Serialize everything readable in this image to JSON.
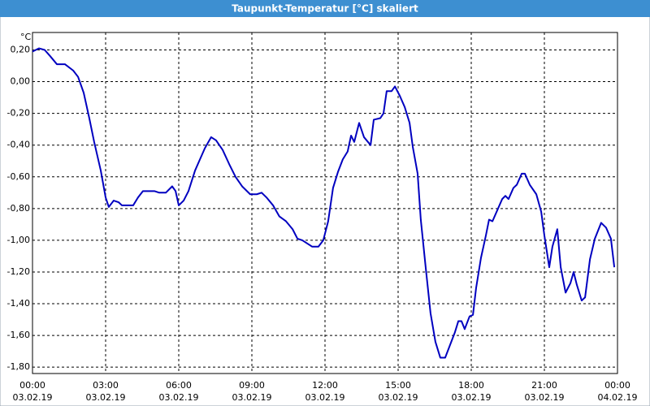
{
  "chart_data": {
    "type": "line",
    "title": "Taupunkt-Temperatur [°C] skaliert",
    "y_unit": "°C",
    "x": [
      0,
      0.27,
      0.5,
      0.73,
      1,
      1.33,
      1.67,
      1.87,
      2.1,
      2.33,
      2.53,
      2.8,
      3,
      3.13,
      3.33,
      3.53,
      3.67,
      3.93,
      4.13,
      4.33,
      4.53,
      5,
      5.2,
      5.47,
      5.73,
      5.87,
      6,
      6.2,
      6.4,
      6.67,
      6.87,
      7.07,
      7.33,
      7.53,
      7.8,
      8.07,
      8.33,
      8.6,
      8.93,
      9.2,
      9.4,
      9.6,
      9.87,
      10.13,
      10.4,
      10.67,
      10.87,
      11.07,
      11.27,
      11.47,
      11.73,
      11.93,
      12.13,
      12.33,
      12.53,
      12.73,
      12.93,
      13.07,
      13.2,
      13.4,
      13.6,
      13.87,
      14,
      14.27,
      14.4,
      14.53,
      14.73,
      14.87,
      15.07,
      15.27,
      15.47,
      15.6,
      15.8,
      15.93,
      16.13,
      16.33,
      16.53,
      16.73,
      16.93,
      17.13,
      17.33,
      17.47,
      17.6,
      17.73,
      17.93,
      18.07,
      18.2,
      18.4,
      18.6,
      18.73,
      18.87,
      19.07,
      19.27,
      19.4,
      19.53,
      19.73,
      19.87,
      20.07,
      20.2,
      20.4,
      20.67,
      20.87,
      21,
      21.2,
      21.33,
      21.53,
      21.67,
      21.87,
      22.07,
      22.2,
      22.33,
      22.53,
      22.67,
      22.87,
      23.07,
      23.33,
      23.53,
      23.73,
      23.87
    ],
    "series": [
      {
        "color": "#0000c0",
        "values": [
          0.19,
          0.21,
          0.2,
          0.16,
          0.11,
          0.11,
          0.07,
          0.03,
          -0.07,
          -0.23,
          -0.38,
          -0.56,
          -0.73,
          -0.79,
          -0.75,
          -0.76,
          -0.78,
          -0.78,
          -0.78,
          -0.73,
          -0.69,
          -0.69,
          -0.7,
          -0.7,
          -0.66,
          -0.69,
          -0.78,
          -0.75,
          -0.69,
          -0.56,
          -0.49,
          -0.42,
          -0.35,
          -0.37,
          -0.43,
          -0.52,
          -0.6,
          -0.66,
          -0.71,
          -0.71,
          -0.7,
          -0.73,
          -0.78,
          -0.85,
          -0.88,
          -0.93,
          -0.99,
          -1.0,
          -1.02,
          -1.04,
          -1.04,
          -1.0,
          -0.88,
          -0.67,
          -0.57,
          -0.49,
          -0.44,
          -0.34,
          -0.38,
          -0.26,
          -0.35,
          -0.4,
          -0.24,
          -0.23,
          -0.2,
          -0.06,
          -0.06,
          -0.03,
          -0.09,
          -0.16,
          -0.26,
          -0.41,
          -0.58,
          -0.87,
          -1.17,
          -1.46,
          -1.64,
          -1.74,
          -1.74,
          -1.66,
          -1.58,
          -1.51,
          -1.51,
          -1.56,
          -1.48,
          -1.47,
          -1.3,
          -1.11,
          -0.97,
          -0.87,
          -0.88,
          -0.81,
          -0.74,
          -0.72,
          -0.74,
          -0.67,
          -0.65,
          -0.58,
          -0.58,
          -0.65,
          -0.71,
          -0.82,
          -0.97,
          -1.17,
          -1.04,
          -0.93,
          -1.17,
          -1.33,
          -1.27,
          -1.2,
          -1.28,
          -1.38,
          -1.36,
          -1.12,
          -0.99,
          -0.89,
          -0.92,
          -0.99,
          -1.17
        ]
      }
    ],
    "xlim": [
      0,
      24
    ],
    "xticks": [
      {
        "value": 0,
        "label": "00:00",
        "date": "03.02.19"
      },
      {
        "value": 3,
        "label": "03:00",
        "date": "03.02.19"
      },
      {
        "value": 6,
        "label": "06:00",
        "date": "03.02.19"
      },
      {
        "value": 9,
        "label": "09:00",
        "date": "03.02.19"
      },
      {
        "value": 12,
        "label": "12:00",
        "date": "03.02.19"
      },
      {
        "value": 15,
        "label": "15:00",
        "date": "03.02.19"
      },
      {
        "value": 18,
        "label": "18:00",
        "date": "03.02.19"
      },
      {
        "value": 21,
        "label": "21:00",
        "date": "03.02.19"
      },
      {
        "value": 24,
        "label": "00:00",
        "date": "04.02.19"
      }
    ],
    "ylim": [
      -1.84,
      0.31
    ],
    "yticks": [
      {
        "value": 0.2,
        "label": "0,20"
      },
      {
        "value": 0,
        "label": "0,00"
      },
      {
        "value": -0.2,
        "label": "-0,20"
      },
      {
        "value": -0.4,
        "label": "-0,40"
      },
      {
        "value": -0.6,
        "label": "-0,60"
      },
      {
        "value": -0.8,
        "label": "-0,80"
      },
      {
        "value": -1,
        "label": "-1,00"
      },
      {
        "value": -1.2,
        "label": "-1,20"
      },
      {
        "value": -1.4,
        "label": "-1,40"
      },
      {
        "value": -1.6,
        "label": "-1,60"
      },
      {
        "value": -1.8,
        "label": "-1,80"
      }
    ],
    "grid": true
  }
}
